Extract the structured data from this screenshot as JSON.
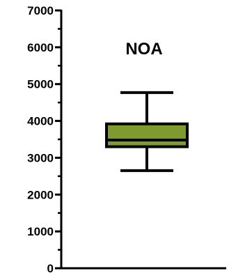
{
  "chart_data": {
    "type": "box",
    "title": "NOA",
    "xlabel": "",
    "ylabel": "",
    "ylim": [
      0,
      7000
    ],
    "major_ticks": [
      0,
      1000,
      2000,
      3000,
      4000,
      5000,
      6000,
      7000
    ],
    "tick_labels": [
      "0",
      "1000",
      "2000",
      "3000",
      "4000",
      "5000",
      "6000",
      "7000"
    ],
    "minor_ticks": [
      500,
      1500,
      2500,
      3500,
      4500,
      5500,
      6500
    ],
    "grid": false,
    "box": {
      "whisker_low": 2650,
      "q1": 3300,
      "median": 3480,
      "q3": 3920,
      "whisker_high": 4770,
      "fill_color": "#7f9b2f",
      "line_color": "#000000"
    }
  }
}
